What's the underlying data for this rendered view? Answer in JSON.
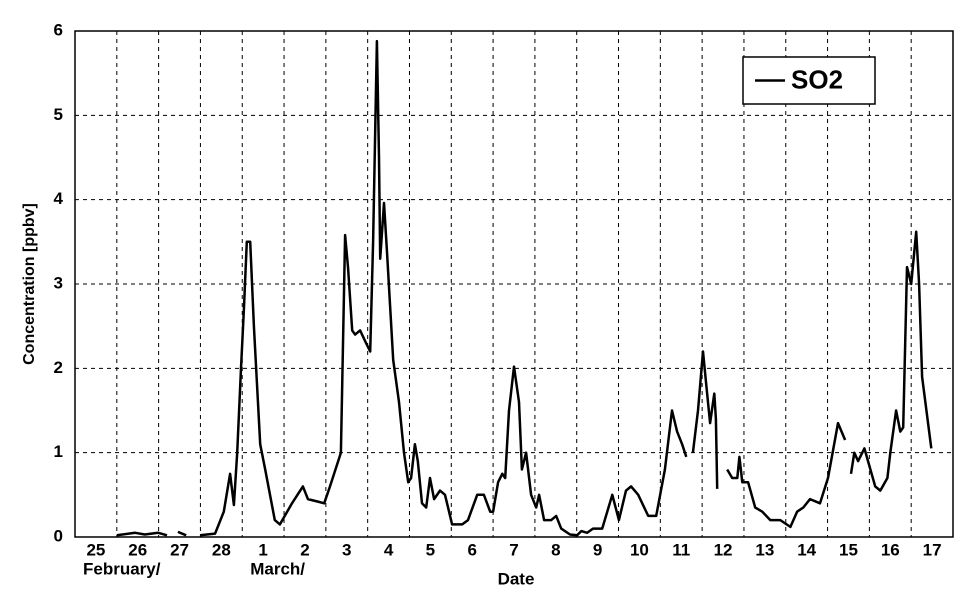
{
  "chart_data": {
    "type": "line",
    "xlabel": "Date",
    "ylabel": "Concentration [ppbv]",
    "annotations": [
      {
        "text": "February/",
        "x": 0
      },
      {
        "text": "March/",
        "x": 4
      }
    ],
    "xlim": [
      0,
      21
    ],
    "ylim": [
      0,
      6
    ],
    "xticks": [
      {
        "value": 0,
        "label": "25"
      },
      {
        "value": 1,
        "label": "26"
      },
      {
        "value": 2,
        "label": "27"
      },
      {
        "value": 3,
        "label": "28"
      },
      {
        "value": 4,
        "label": "1"
      },
      {
        "value": 5,
        "label": "2"
      },
      {
        "value": 6,
        "label": "3"
      },
      {
        "value": 7,
        "label": "4"
      },
      {
        "value": 8,
        "label": "5"
      },
      {
        "value": 9,
        "label": "6"
      },
      {
        "value": 10,
        "label": "7"
      },
      {
        "value": 11,
        "label": "8"
      },
      {
        "value": 12,
        "label": "9"
      },
      {
        "value": 13,
        "label": "10"
      },
      {
        "value": 14,
        "label": "11"
      },
      {
        "value": 15,
        "label": "12"
      },
      {
        "value": 16,
        "label": "13"
      },
      {
        "value": 17,
        "label": "14"
      },
      {
        "value": 18,
        "label": "15"
      },
      {
        "value": 19,
        "label": "16"
      },
      {
        "value": 20,
        "label": "17"
      }
    ],
    "yticks": [
      0,
      1,
      2,
      3,
      4,
      5,
      6
    ],
    "grid": true,
    "legend": "upper right",
    "x": [
      1.0,
      1.44,
      1.67,
      1.99,
      2.2,
      2.33,
      2.46,
      2.66,
      2.82,
      2.99,
      3.35,
      3.56,
      3.71,
      3.8,
      3.88,
      3.97,
      4.04,
      4.11,
      4.19,
      4.28,
      4.43,
      4.55,
      4.78,
      4.9,
      5.19,
      5.45,
      5.57,
      5.81,
      5.96,
      6.1,
      6.36,
      6.46,
      6.53,
      6.63,
      6.7,
      6.82,
      6.96,
      7.06,
      7.13,
      7.22,
      7.27,
      7.3,
      7.39,
      7.46,
      7.61,
      7.75,
      7.87,
      7.97,
      8.04,
      8.13,
      8.2,
      8.3,
      8.4,
      8.49,
      8.59,
      8.73,
      8.85,
      9.02,
      9.26,
      9.4,
      9.62,
      9.78,
      9.93,
      10.0,
      10.12,
      10.22,
      10.29,
      10.38,
      10.5,
      10.62,
      10.69,
      10.79,
      10.91,
      11.03,
      11.1,
      11.22,
      11.39,
      11.51,
      11.63,
      11.84,
      12.01,
      12.11,
      12.25,
      12.39,
      12.61,
      12.85,
      13.01,
      13.18,
      13.3,
      13.47,
      13.71,
      13.9,
      14.11,
      14.28,
      14.4,
      14.52,
      14.62,
      14.7,
      14.78,
      14.9,
      15.02,
      15.1,
      15.19,
      15.29,
      15.33,
      15.36,
      15.48,
      15.6,
      15.72,
      15.84,
      15.89,
      15.96,
      16.1,
      16.27,
      16.44,
      16.63,
      16.87,
      17.11,
      17.27,
      17.42,
      17.58,
      17.82,
      18.01,
      18.25,
      18.42,
      18.49,
      18.56,
      18.64,
      18.73,
      18.88,
      19.14,
      19.26,
      19.43,
      19.5,
      19.64,
      19.74,
      19.81,
      19.9,
      20.0,
      20.12,
      20.19,
      20.26,
      20.48
    ],
    "series": [
      {
        "name": "SO2",
        "color": "#000000",
        "values": [
          0.02,
          0.05,
          0.03,
          0.05,
          0.02,
          null,
          0.06,
          0.02,
          null,
          0.02,
          0.04,
          0.3,
          0.75,
          0.38,
          1.0,
          2.0,
          2.7,
          3.5,
          3.5,
          2.5,
          1.1,
          0.8,
          0.2,
          0.15,
          0.4,
          0.6,
          0.45,
          0.42,
          0.4,
          0.6,
          1.0,
          3.58,
          3.2,
          2.45,
          2.4,
          2.45,
          2.3,
          2.2,
          3.5,
          5.88,
          4.5,
          3.3,
          3.96,
          3.4,
          2.1,
          1.6,
          1.0,
          0.65,
          0.7,
          1.1,
          0.9,
          0.4,
          0.35,
          0.7,
          0.45,
          0.55,
          0.5,
          0.15,
          0.15,
          0.2,
          0.5,
          0.5,
          0.3,
          0.3,
          0.65,
          0.75,
          0.7,
          1.5,
          2.02,
          1.6,
          0.8,
          1.0,
          0.5,
          0.35,
          0.5,
          0.2,
          0.2,
          0.25,
          0.1,
          0.03,
          0.02,
          0.07,
          0.05,
          0.1,
          0.1,
          0.5,
          0.2,
          0.55,
          0.6,
          0.5,
          0.25,
          0.25,
          0.8,
          1.5,
          1.25,
          1.1,
          0.95,
          null,
          1.0,
          1.5,
          2.2,
          1.8,
          1.35,
          1.7,
          1.4,
          0.57,
          null,
          0.8,
          0.7,
          0.7,
          0.95,
          0.65,
          0.65,
          0.35,
          0.3,
          0.2,
          0.2,
          0.12,
          0.3,
          0.35,
          0.45,
          0.4,
          0.7,
          1.35,
          1.15,
          null,
          0.75,
          1.0,
          0.9,
          1.05,
          0.6,
          0.55,
          0.7,
          1.0,
          1.5,
          1.25,
          1.3,
          3.2,
          3.0,
          3.62,
          3.0,
          1.9,
          1.05
        ]
      }
    ]
  }
}
